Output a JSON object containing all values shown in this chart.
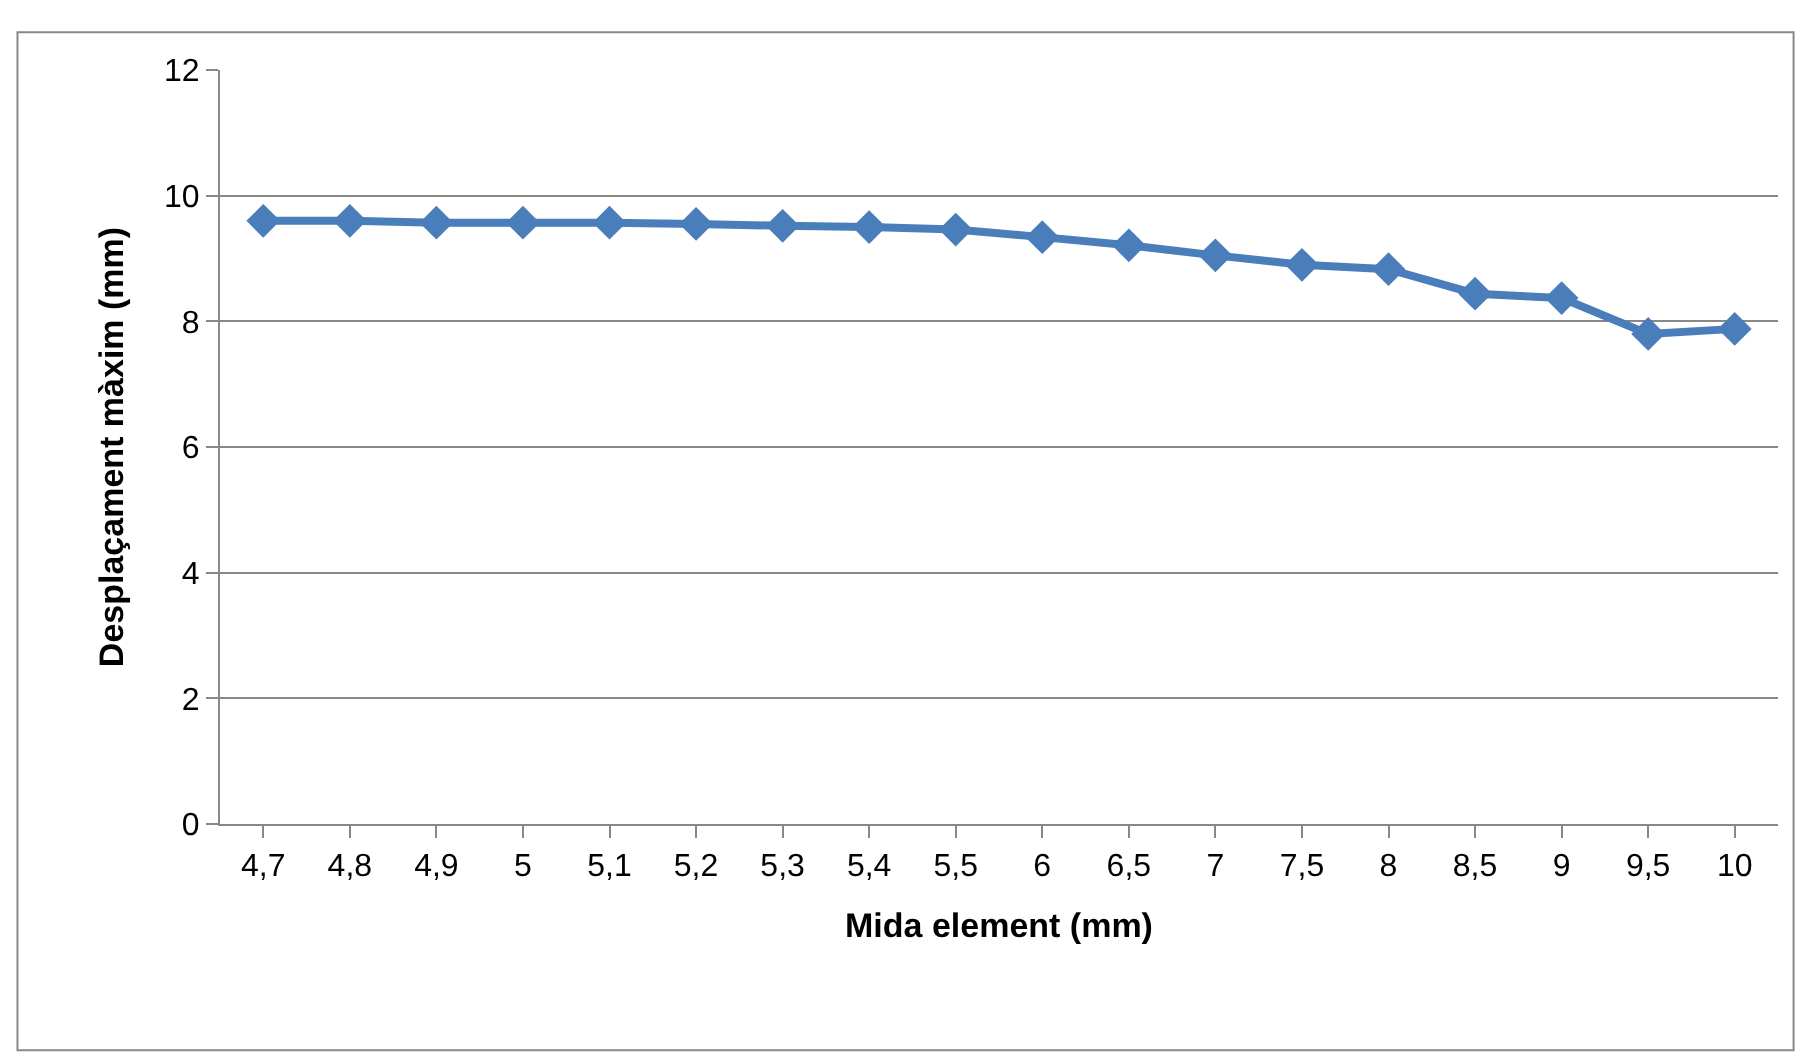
{
  "chart_data": {
    "type": "line",
    "xlabel": "Mida element (mm)",
    "ylabel": "Desplaçament màxim (mm)",
    "categories": [
      "4,7",
      "4,8",
      "4,9",
      "5",
      "5,1",
      "5,2",
      "5,3",
      "5,4",
      "5,5",
      "6",
      "6,5",
      "7",
      "7,5",
      "8",
      "8,5",
      "9",
      "9,5",
      "10"
    ],
    "series": [
      {
        "color": "#4a7ebb",
        "values": [
          9.6,
          9.6,
          9.57,
          9.57,
          9.57,
          9.55,
          9.52,
          9.5,
          9.46,
          9.34,
          9.21,
          9.05,
          8.9,
          8.83,
          8.44,
          8.37,
          7.8,
          7.88
        ]
      }
    ],
    "ylim": [
      0,
      12
    ],
    "yticks": [
      0,
      2,
      4,
      6,
      8,
      10,
      12
    ],
    "grid": "y",
    "marker": "diamond",
    "line_style": "solid",
    "legend": false
  }
}
